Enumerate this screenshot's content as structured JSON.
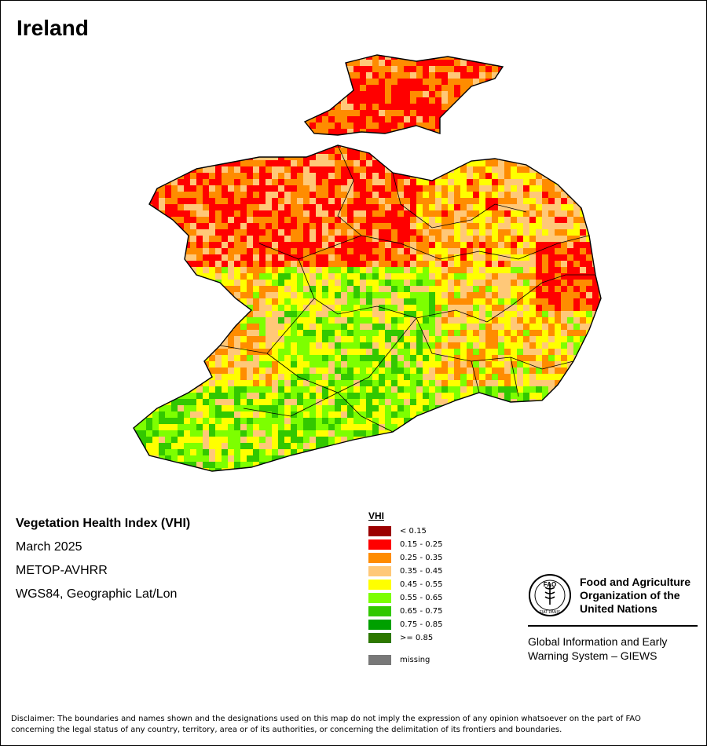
{
  "map": {
    "title": "Ireland"
  },
  "info": {
    "index_name": "Vegetation Health Index (VHI)",
    "period": "March 2025",
    "sensor": "METOP-AVHRR",
    "projection": "WGS84, Geographic Lat/Lon"
  },
  "legend": {
    "title": "VHI",
    "items": [
      {
        "label": "< 0.15",
        "color": "#9b0000"
      },
      {
        "label": "0.15 - 0.25",
        "color": "#ff0000"
      },
      {
        "label": "0.25 - 0.35",
        "color": "#ff8c00"
      },
      {
        "label": "0.35 - 0.45",
        "color": "#ffc878"
      },
      {
        "label": "0.45 - 0.55",
        "color": "#ffff00"
      },
      {
        "label": "0.55 - 0.65",
        "color": "#7dff00"
      },
      {
        "label": "0.65 - 0.75",
        "color": "#32c800"
      },
      {
        "label": "0.75 - 0.85",
        "color": "#00a000"
      },
      {
        "label": ">= 0.85",
        "color": "#2d7800"
      }
    ],
    "missing": {
      "label": "missing",
      "color": "#787878"
    }
  },
  "fao": {
    "name_line1": "Food and Agriculture",
    "name_line2": "Organization of the",
    "name_line3": "United Nations",
    "emblem_letters": "FAO",
    "emblem_motto": "FIAT PANIS",
    "giews_line1": "Global Information and Early",
    "giews_line2": "Warning System – GIEWS"
  },
  "disclaimer": {
    "line1": "Disclaimer: The boundaries and names shown and the designations used on this map do not imply the expression of any opinion whatsoever on the part of FAO",
    "line2": "concerning the legal status of any country, territory, area or of its authorities, or concerning the delimitation of its frontiers and boundaries."
  }
}
